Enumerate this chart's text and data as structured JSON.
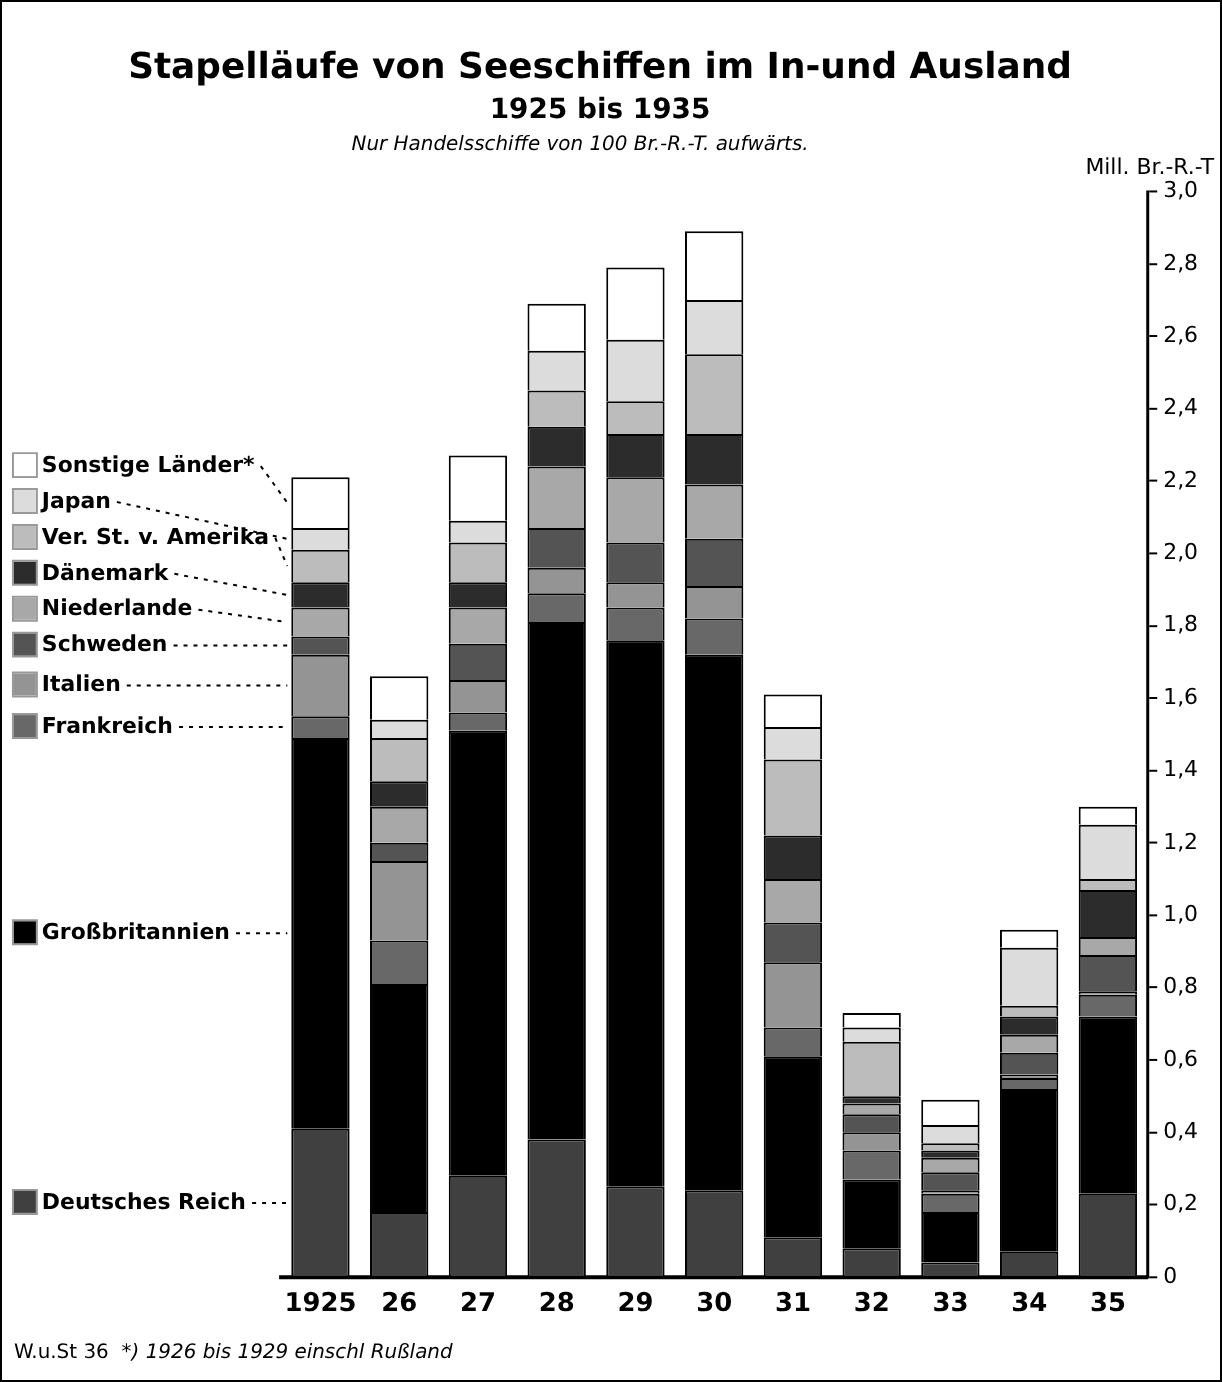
{
  "chart_data": {
    "type": "bar",
    "stacked": true,
    "title": "Stapelläufe von Seeschiffen im In-und Ausland",
    "subtitle": "1925 bis 1935",
    "ylabel": "Mill. Br.-R.-T",
    "annotations": [
      "Nur Handelsschiffe von 100 Br.-R.-T. aufwärts.",
      "*) 1926 bis 1929 einschl Rußland",
      "W.u.St 36"
    ],
    "categories": [
      "1925",
      "26",
      "27",
      "28",
      "29",
      "30",
      "31",
      "32",
      "33",
      "34",
      "35"
    ],
    "series": [
      {
        "name": "Deutsches Reich",
        "color": "#404040",
        "values": [
          0.41,
          0.18,
          0.28,
          0.38,
          0.25,
          0.24,
          0.11,
          0.08,
          0.04,
          0.07,
          0.23
        ]
      },
      {
        "name": "Großbritannien",
        "color": "#000000",
        "values": [
          1.08,
          0.63,
          1.23,
          1.43,
          1.51,
          1.48,
          0.5,
          0.19,
          0.14,
          0.45,
          0.49
        ]
      },
      {
        "name": "Frankreich",
        "color": "#686868",
        "values": [
          0.06,
          0.12,
          0.05,
          0.08,
          0.09,
          0.1,
          0.08,
          0.08,
          0.05,
          0.03,
          0.06
        ]
      },
      {
        "name": "Italien",
        "color": "#949494",
        "values": [
          0.17,
          0.22,
          0.09,
          0.07,
          0.07,
          0.09,
          0.18,
          0.05,
          0.01,
          0.01,
          0.01
        ]
      },
      {
        "name": "Schweden",
        "color": "#545454",
        "values": [
          0.05,
          0.05,
          0.1,
          0.11,
          0.11,
          0.13,
          0.11,
          0.05,
          0.05,
          0.06,
          0.1
        ]
      },
      {
        "name": "Niederlande",
        "color": "#a8a8a8",
        "values": [
          0.08,
          0.1,
          0.1,
          0.17,
          0.18,
          0.15,
          0.12,
          0.03,
          0.04,
          0.05,
          0.05
        ]
      },
      {
        "name": "Dänemark",
        "color": "#2c2c2c",
        "values": [
          0.07,
          0.07,
          0.07,
          0.11,
          0.12,
          0.14,
          0.12,
          0.02,
          0.02,
          0.05,
          0.13
        ]
      },
      {
        "name": "Ver. St. v. Amerika",
        "color": "#bcbcbc",
        "values": [
          0.09,
          0.12,
          0.11,
          0.1,
          0.09,
          0.22,
          0.21,
          0.15,
          0.02,
          0.03,
          0.03
        ]
      },
      {
        "name": "Japan",
        "color": "#dcdcdc",
        "values": [
          0.06,
          0.05,
          0.06,
          0.11,
          0.17,
          0.15,
          0.09,
          0.04,
          0.05,
          0.16,
          0.15
        ]
      },
      {
        "name": "Sonstige Länder*",
        "color": "#ffffff",
        "values": [
          0.14,
          0.12,
          0.18,
          0.13,
          0.2,
          0.19,
          0.09,
          0.04,
          0.07,
          0.05,
          0.05
        ]
      }
    ],
    "ylim": [
      0,
      3.0
    ],
    "yticks": [
      0,
      {
        "value": 0.2,
        "label": "0,2"
      },
      {
        "value": 0.4,
        "label": "0,4"
      },
      {
        "value": 0.6,
        "label": "0,6"
      },
      {
        "value": 0.8,
        "label": "0,8"
      },
      {
        "value": 1.0,
        "label": "1,0"
      },
      {
        "value": 1.2,
        "label": "1,2"
      },
      {
        "value": 1.4,
        "label": "1,4"
      },
      {
        "value": 1.6,
        "label": "1,6"
      },
      {
        "value": 1.8,
        "label": "1,8"
      },
      {
        "value": 2.0,
        "label": "2,0"
      },
      {
        "value": 2.2,
        "label": "2,2"
      },
      {
        "value": 2.4,
        "label": "2,4"
      },
      {
        "value": 2.6,
        "label": "2,6"
      },
      {
        "value": 2.8,
        "label": "2,8"
      },
      {
        "value": 3.0,
        "label": "3,0"
      }
    ],
    "grid": false,
    "legend": "left"
  }
}
